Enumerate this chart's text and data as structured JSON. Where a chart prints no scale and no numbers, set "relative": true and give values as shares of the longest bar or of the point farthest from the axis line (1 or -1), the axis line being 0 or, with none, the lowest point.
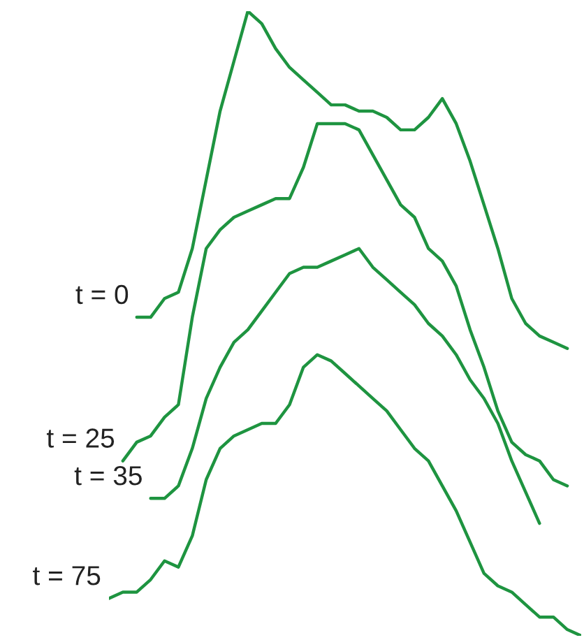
{
  "chart_data": {
    "type": "line",
    "relative": true,
    "tick_labels": false,
    "legend": false,
    "categories": [
      null,
      null,
      null,
      null,
      null,
      null,
      null,
      null,
      null,
      null,
      null,
      null,
      null,
      null,
      null,
      null,
      null,
      null,
      null,
      null,
      null,
      null,
      null,
      null,
      null,
      null,
      null,
      null,
      null,
      null,
      null,
      null,
      null,
      null,
      null
    ],
    "series": [
      {
        "name": "t = 0",
        "color": "#1e9440",
        "values": [
          null,
          null,
          0.51,
          0.51,
          0.54,
          0.55,
          0.62,
          0.73,
          0.84,
          0.92,
          1.0,
          0.98,
          0.94,
          0.91,
          0.89,
          0.87,
          0.85,
          0.85,
          0.84,
          0.84,
          0.83,
          0.81,
          0.81,
          0.83,
          0.86,
          0.82,
          0.76,
          0.69,
          0.62,
          0.54,
          0.5,
          0.48,
          0.47,
          0.46,
          null
        ]
      },
      {
        "name": "t = 25",
        "color": "#1e9440",
        "values": [
          null,
          0.28,
          0.31,
          0.32,
          0.35,
          0.37,
          0.51,
          0.62,
          0.65,
          0.67,
          0.68,
          0.69,
          0.7,
          0.7,
          0.75,
          0.82,
          0.82,
          0.82,
          0.81,
          0.77,
          0.73,
          0.69,
          0.67,
          0.62,
          0.6,
          0.56,
          0.49,
          0.43,
          0.36,
          0.31,
          0.29,
          0.28,
          0.25,
          0.24,
          null
        ]
      },
      {
        "name": "t = 35",
        "color": "#1e9440",
        "values": [
          null,
          null,
          null,
          0.22,
          0.22,
          0.24,
          0.3,
          0.38,
          0.43,
          0.47,
          0.49,
          0.52,
          0.55,
          0.58,
          0.59,
          0.59,
          0.6,
          0.61,
          0.62,
          0.59,
          0.57,
          0.55,
          0.53,
          0.5,
          0.48,
          0.45,
          0.41,
          0.38,
          0.34,
          0.28,
          0.23,
          0.18,
          null,
          null,
          null
        ]
      },
      {
        "name": "t = 75",
        "color": "#1e9440",
        "values": [
          0.06,
          0.07,
          0.07,
          0.09,
          0.12,
          0.11,
          0.16,
          0.25,
          0.3,
          0.32,
          0.33,
          0.34,
          0.34,
          0.37,
          0.43,
          0.45,
          0.44,
          0.42,
          0.4,
          0.38,
          0.36,
          0.33,
          0.3,
          0.28,
          0.24,
          0.2,
          0.15,
          0.1,
          0.08,
          0.07,
          0.05,
          0.03,
          0.03,
          0.01,
          0.0
        ]
      }
    ]
  }
}
